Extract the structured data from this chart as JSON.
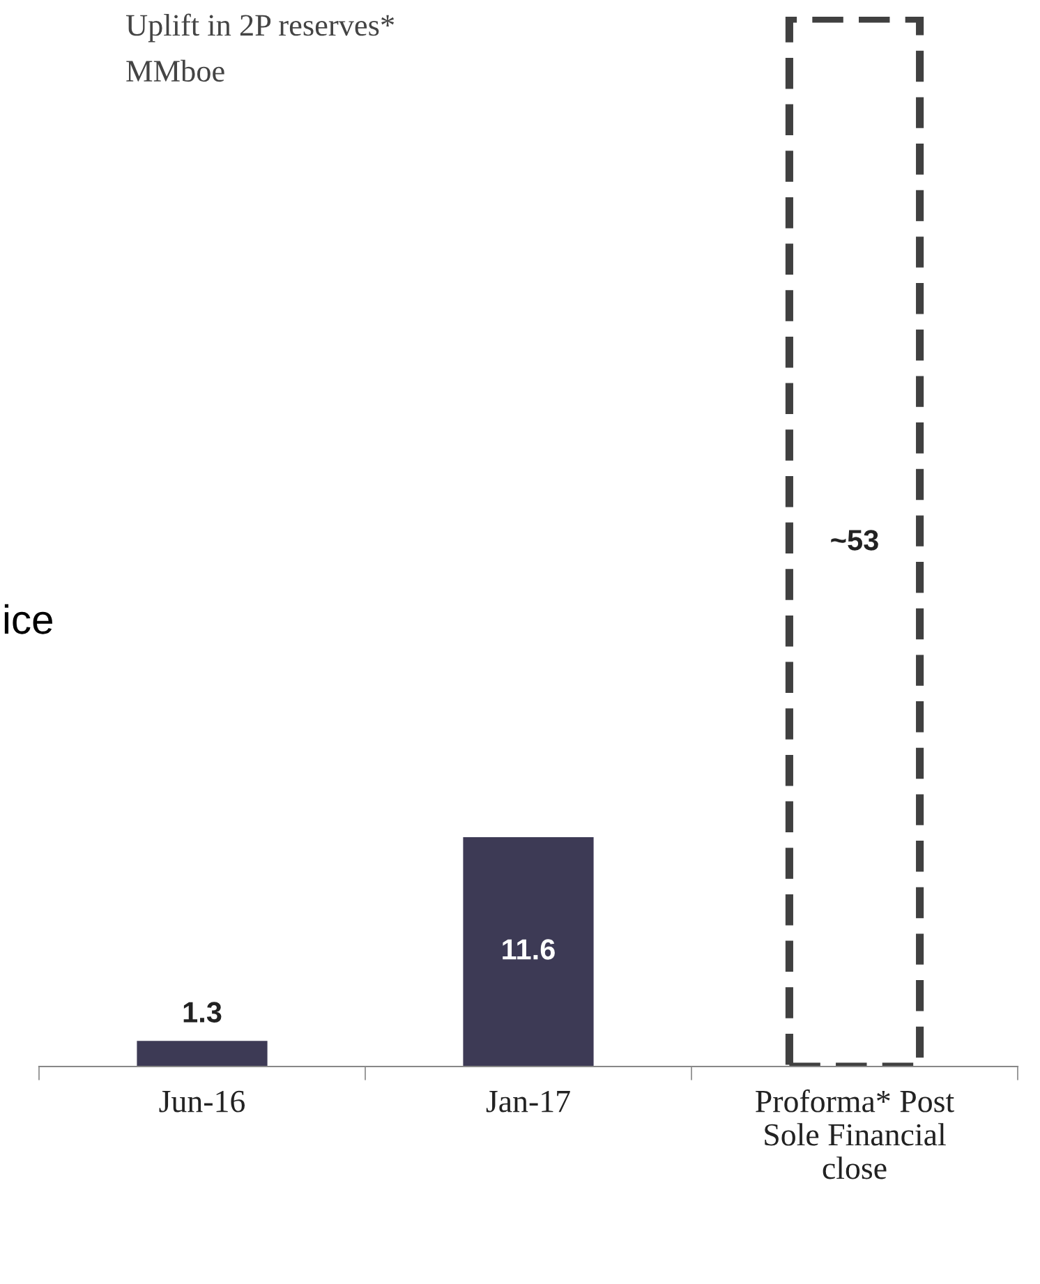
{
  "chart_data": {
    "type": "bar",
    "title": "Uplift in 2P reserves*",
    "subtitle": "MMboe",
    "categories": [
      "Jun-16",
      "Jan-17",
      "Proforma* Post\nSole Financial\nclose"
    ],
    "series": [
      {
        "color": "#3d3a55",
        "values": [
          1.3,
          11.6,
          null
        ],
        "value_labels": [
          "1.3",
          "11.6",
          null
        ]
      },
      {
        "color": "#404040",
        "line_style": "dashed",
        "values": [
          null,
          null,
          53
        ],
        "value_labels": [
          null,
          null,
          "~53"
        ]
      }
    ],
    "annotations": [
      "ice"
    ],
    "grid": false,
    "legend": false
  }
}
